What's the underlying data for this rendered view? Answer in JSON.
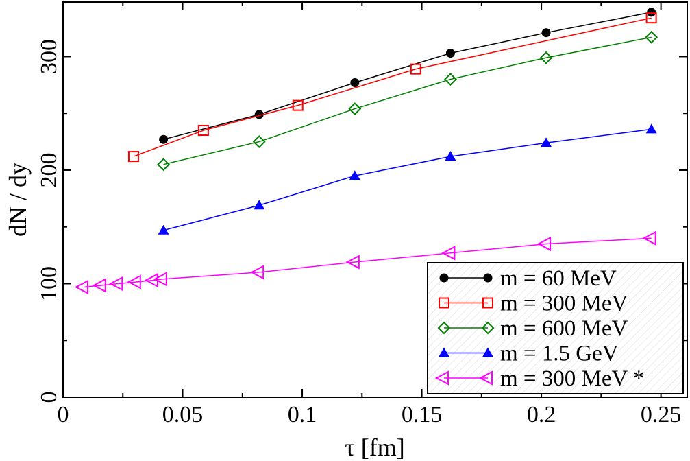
{
  "chart_data": {
    "type": "line",
    "xlabel": "τ [fm]",
    "ylabel": "dN / dy",
    "xlim": [
      0,
      0.261
    ],
    "ylim": [
      0,
      348
    ],
    "xticks": [
      0,
      0.05,
      0.1,
      0.15,
      0.2,
      0.25
    ],
    "xtick_labels": [
      "0",
      "0.05",
      "0.1",
      "0.15",
      "0.2",
      "0.25"
    ],
    "yticks": [
      0,
      100,
      200,
      300
    ],
    "ytick_labels": [
      "0",
      "100",
      "200",
      "300"
    ],
    "grid": false,
    "legend_position": "bottom-right",
    "series": [
      {
        "name": "m = 60 MeV",
        "color": "#000000",
        "marker": "filled-circle",
        "x": [
          0.042,
          0.082,
          0.122,
          0.162,
          0.202,
          0.246
        ],
        "y": [
          227,
          249,
          277,
          303,
          321,
          339
        ]
      },
      {
        "name": "m = 300 MeV",
        "color": "#ff0000",
        "marker": "open-square",
        "x": [
          0.0295,
          0.0587,
          0.0982,
          0.1475,
          0.246
        ],
        "y": [
          212,
          235,
          257,
          289,
          334
        ]
      },
      {
        "name": "m = 600 MeV",
        "color": "#008000",
        "marker": "open-diamond",
        "x": [
          0.042,
          0.082,
          0.122,
          0.162,
          0.202,
          0.246
        ],
        "y": [
          205,
          225,
          254,
          280,
          299,
          317
        ]
      },
      {
        "name": "m = 1.5 GeV",
        "color": "#0000ff",
        "marker": "filled-triangle-up",
        "x": [
          0.042,
          0.082,
          0.122,
          0.162,
          0.202,
          0.246
        ],
        "y": [
          147,
          169,
          195,
          212,
          224,
          236
        ]
      },
      {
        "name": "m = 300 MeV *",
        "color": "#ff00ff",
        "marker": "open-triangle-left",
        "x": [
          0.0086,
          0.016,
          0.023,
          0.0306,
          0.0378,
          0.0415,
          0.082,
          0.122,
          0.162,
          0.202,
          0.246
        ],
        "y": [
          97,
          98.5,
          100,
          101.5,
          103,
          104,
          110,
          119,
          127,
          135,
          140
        ]
      }
    ]
  }
}
